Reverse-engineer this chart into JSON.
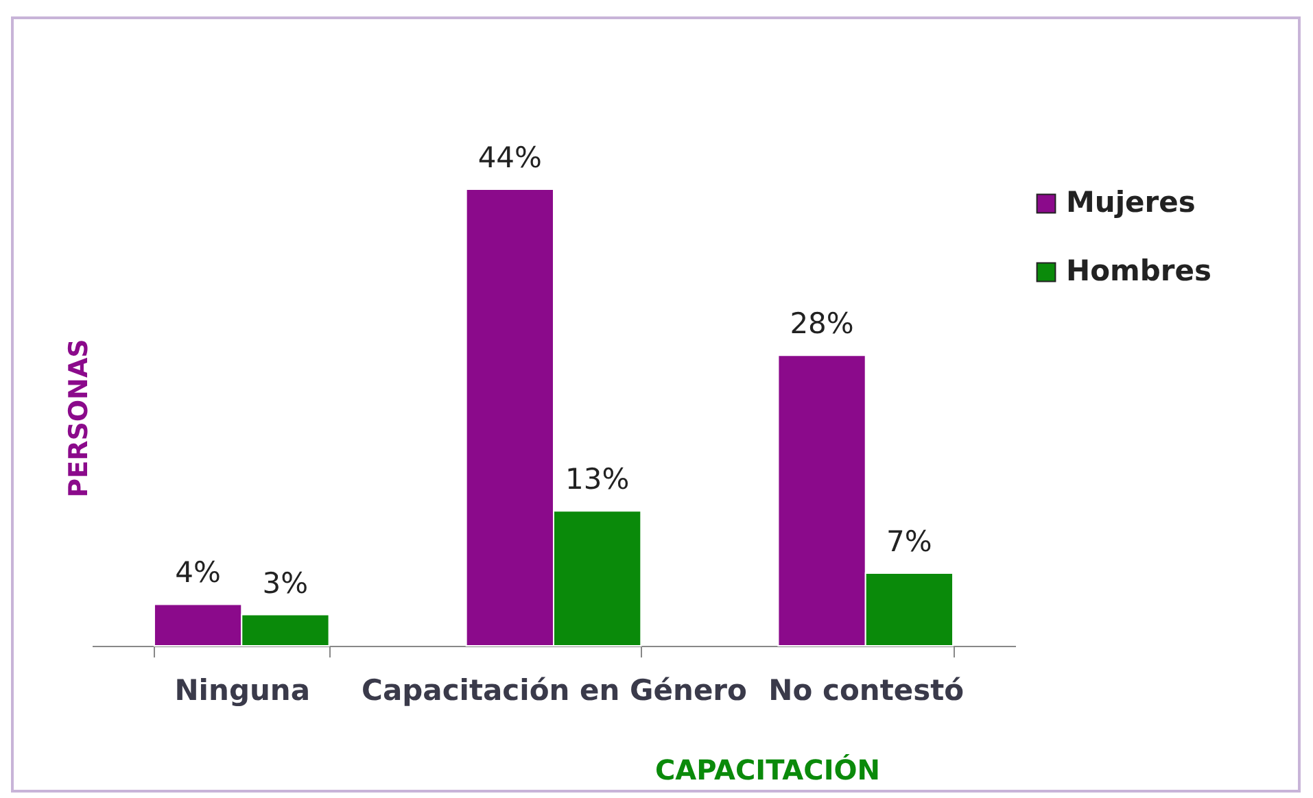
{
  "chart_data": {
    "type": "bar",
    "xlabel": "CAPACITACIÓN",
    "ylabel": "PERSONAS",
    "categories": [
      "Ninguna",
      "Capacitación en Género",
      "No contestó"
    ],
    "series": [
      {
        "name": "Mujeres",
        "color": "#8b0a8b",
        "values": [
          4,
          44,
          28
        ],
        "value_labels": [
          "4%",
          "44%",
          "28%"
        ]
      },
      {
        "name": "Hombres",
        "color": "#0a8a0a",
        "values": [
          3,
          13,
          7
        ],
        "value_labels": [
          "3%",
          "13%",
          "7%"
        ]
      }
    ],
    "grid": false,
    "legend": "top right"
  }
}
